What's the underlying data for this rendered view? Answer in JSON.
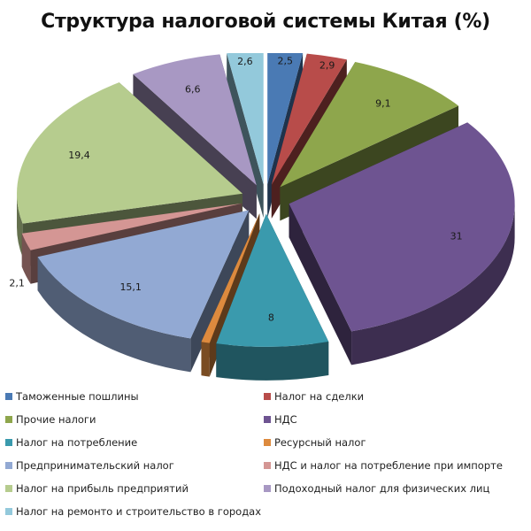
{
  "title": "Структура налоговой системы Китая (%)",
  "chart_data": {
    "type": "pie",
    "title": "Структура налоговой системы Китая (%)",
    "style": "3d-exploded",
    "start_angle_deg": 0,
    "direction": "clockwise",
    "legend_position": "bottom",
    "slices": [
      {
        "label": "Таможенные пошлины",
        "value": 2.5,
        "display": "2,5",
        "color": "#4a7ab4"
      },
      {
        "label": "Налог на сделки",
        "value": 2.9,
        "display": "2,9",
        "color": "#b84c4a"
      },
      {
        "label": "Прочие налоги",
        "value": 9.1,
        "display": "9,1",
        "color": "#8ea64c"
      },
      {
        "label": "НДС",
        "value": 31,
        "display": "31",
        "color": "#6e5491"
      },
      {
        "label": "Налог на потребление",
        "value": 8,
        "display": "8",
        "color": "#3a9aad"
      },
      {
        "label": "Ресурсный налог",
        "value": 0.6,
        "display": "0,6",
        "color": "#dd8a3e"
      },
      {
        "label": "Предпринимательский налог",
        "value": 15.1,
        "display": "15,1",
        "color": "#92a9d3"
      },
      {
        "label": "НДС и налог на потребление при импорте",
        "value": 2.1,
        "display": "2,1",
        "color": "#d49694"
      },
      {
        "label": "Налог на прибыль предприятий",
        "value": 19.4,
        "display": "19,4",
        "color": "#b6cc8e"
      },
      {
        "label": "Подоходный налог для физических лиц",
        "value": 6.6,
        "display": "6,6",
        "color": "#a898c3"
      },
      {
        "label": "Налог на ремонто и строительство в городах",
        "value": 2.6,
        "display": "2,6",
        "color": "#93c9db"
      }
    ]
  },
  "legend": {
    "items": [
      {
        "label": "Таможенные пошлины",
        "color": "#4a7ab4"
      },
      {
        "label": "Налог на сделки",
        "color": "#b84c4a"
      },
      {
        "label": "Прочие налоги",
        "color": "#8ea64c"
      },
      {
        "label": "НДС",
        "color": "#6e5491"
      },
      {
        "label": "Налог на потребление",
        "color": "#3a9aad"
      },
      {
        "label": "Ресурсный налог",
        "color": "#dd8a3e"
      },
      {
        "label": "Предпринимательский налог",
        "color": "#92a9d3"
      },
      {
        "label": "НДС и налог на потребление при импорте",
        "color": "#d49694"
      },
      {
        "label": "Налог на прибыль предприятий",
        "color": "#b6cc8e"
      },
      {
        "label": "Подоходный налог для физических лиц",
        "color": "#a898c3"
      },
      {
        "label": "Налог на ремонто и строительство в городах",
        "color": "#93c9db"
      }
    ]
  }
}
